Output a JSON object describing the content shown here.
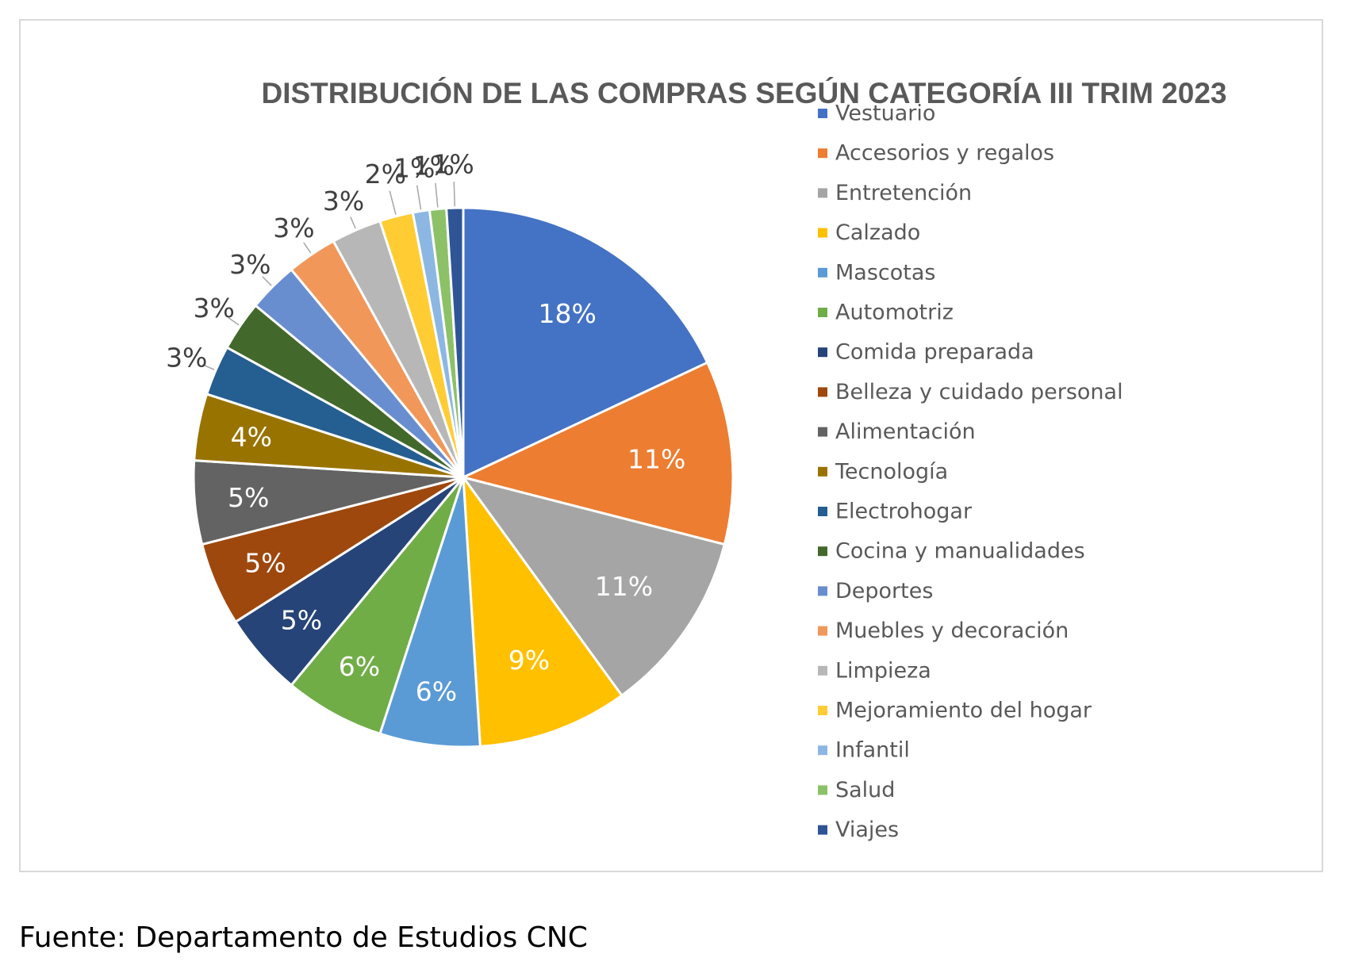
{
  "source_note": "Fuente: Departamento de Estudios CNC",
  "chart_data": {
    "type": "pie",
    "title": "DISTRIBUCIÓN DE LAS COMPRAS  SEGÚN CATEGORÍA III TRIM 2023",
    "legend_position": "right",
    "label_format": "percent",
    "slices": [
      {
        "name": "Vestuario",
        "value": 18,
        "label": "18%",
        "color": "#4472C4"
      },
      {
        "name": "Accesorios y regalos",
        "value": 11,
        "label": "11%",
        "color": "#ED7D31"
      },
      {
        "name": "Entretención",
        "value": 11,
        "label": "11%",
        "color": "#A5A5A5"
      },
      {
        "name": "Calzado",
        "value": 9,
        "label": "9%",
        "color": "#FFC000"
      },
      {
        "name": "Mascotas",
        "value": 6,
        "label": "6%",
        "color": "#5B9BD5"
      },
      {
        "name": "Automotriz",
        "value": 6,
        "label": "6%",
        "color": "#70AD47"
      },
      {
        "name": "Comida preparada",
        "value": 5,
        "label": "5%",
        "color": "#264478"
      },
      {
        "name": "Belleza y cuidado personal",
        "value": 5,
        "label": "5%",
        "color": "#9E480E"
      },
      {
        "name": "Alimentación",
        "value": 5,
        "label": "5%",
        "color": "#636363"
      },
      {
        "name": "Tecnología",
        "value": 4,
        "label": "4%",
        "color": "#997300"
      },
      {
        "name": "Electrohogar",
        "value": 3,
        "label": "3%",
        "color": "#255E91"
      },
      {
        "name": "Cocina y manualidades",
        "value": 3,
        "label": "3%",
        "color": "#43682B"
      },
      {
        "name": "Deportes",
        "value": 3,
        "label": "3%",
        "color": "#698ED0"
      },
      {
        "name": "Muebles y decoración",
        "value": 3,
        "label": "3%",
        "color": "#F1975A"
      },
      {
        "name": "Limpieza",
        "value": 3,
        "label": "3%",
        "color": "#B7B7B7"
      },
      {
        "name": "Mejoramiento del hogar",
        "value": 2,
        "label": "2%",
        "color": "#FFCD33"
      },
      {
        "name": "Infantil",
        "value": 1,
        "label": "1%",
        "color": "#8CB7E3"
      },
      {
        "name": "Salud",
        "value": 1,
        "label": "1%",
        "color": "#8CC168"
      },
      {
        "name": "Viajes",
        "value": 1,
        "label": "1%",
        "color": "#2F5597"
      }
    ]
  }
}
